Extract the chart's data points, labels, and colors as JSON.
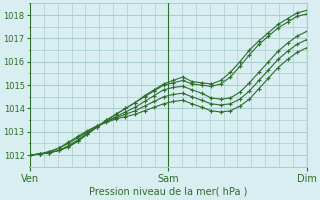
{
  "title": "Pression niveau de la mer( hPa )",
  "bg_color": "#d8eef0",
  "grid_color": "#aacccc",
  "line_color": "#2d6e2d",
  "marker_color": "#2d6e2d",
  "ylim": [
    1011.5,
    1018.5
  ],
  "yticks": [
    1012,
    1013,
    1014,
    1015,
    1016,
    1017,
    1018
  ],
  "xlim": [
    0,
    1.0
  ],
  "xlabel_ticks": [
    0.0,
    0.5,
    1.0
  ],
  "xlabel_labels": [
    "Ven",
    "Sam",
    "Dim"
  ],
  "lines": [
    [
      1012.0,
      1012.05,
      1012.1,
      1012.2,
      1012.35,
      1012.6,
      1012.9,
      1013.2,
      1013.5,
      1013.75,
      1014.0,
      1014.25,
      1014.55,
      1014.8,
      1015.05,
      1015.2,
      1015.35,
      1015.15,
      1015.1,
      1015.05,
      1015.2,
      1015.55,
      1016.0,
      1016.5,
      1016.9,
      1017.25,
      1017.6,
      1017.85,
      1018.1,
      1018.2
    ],
    [
      1012.0,
      1012.05,
      1012.1,
      1012.2,
      1012.35,
      1012.6,
      1012.9,
      1013.2,
      1013.5,
      1013.75,
      1014.0,
      1014.25,
      1014.5,
      1014.75,
      1015.0,
      1015.1,
      1015.2,
      1015.05,
      1015.0,
      1014.95,
      1015.05,
      1015.35,
      1015.8,
      1016.3,
      1016.75,
      1017.1,
      1017.45,
      1017.7,
      1017.95,
      1018.05
    ],
    [
      1012.0,
      1012.05,
      1012.1,
      1012.2,
      1012.4,
      1012.65,
      1012.95,
      1013.2,
      1013.45,
      1013.65,
      1013.85,
      1014.05,
      1014.3,
      1014.55,
      1014.8,
      1014.9,
      1014.95,
      1014.8,
      1014.65,
      1014.45,
      1014.4,
      1014.45,
      1014.7,
      1015.1,
      1015.55,
      1016.0,
      1016.45,
      1016.8,
      1017.1,
      1017.3
    ],
    [
      1012.0,
      1012.05,
      1012.15,
      1012.3,
      1012.5,
      1012.75,
      1013.0,
      1013.25,
      1013.45,
      1013.6,
      1013.75,
      1013.9,
      1014.1,
      1014.3,
      1014.5,
      1014.6,
      1014.65,
      1014.5,
      1014.35,
      1014.2,
      1014.15,
      1014.2,
      1014.4,
      1014.75,
      1015.2,
      1015.65,
      1016.1,
      1016.45,
      1016.75,
      1016.95
    ],
    [
      1012.0,
      1012.05,
      1012.15,
      1012.3,
      1012.55,
      1012.8,
      1013.05,
      1013.25,
      1013.4,
      1013.55,
      1013.65,
      1013.75,
      1013.9,
      1014.05,
      1014.2,
      1014.3,
      1014.35,
      1014.2,
      1014.05,
      1013.9,
      1013.85,
      1013.9,
      1014.1,
      1014.4,
      1014.85,
      1015.3,
      1015.75,
      1016.1,
      1016.4,
      1016.6
    ]
  ]
}
